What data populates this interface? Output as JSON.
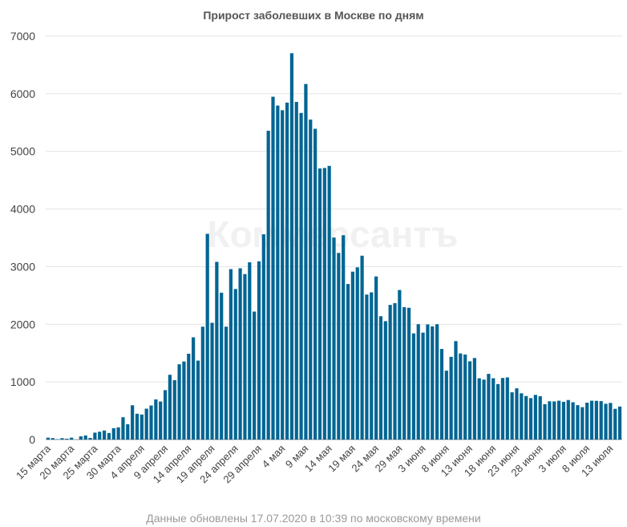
{
  "chart_data": {
    "type": "bar",
    "title": "Прирост заболевших в Москве по дням",
    "xlabel": "",
    "ylabel": "",
    "ylim": [
      0,
      7000
    ],
    "yticks": [
      0,
      1000,
      2000,
      3000,
      4000,
      5000,
      6000,
      7000
    ],
    "grid": true,
    "bar_color": "#006593",
    "start_date": "15 марта",
    "xtick_labels": [
      "15 марта",
      "20 марта",
      "25 марта",
      "30 марта",
      "4 апреля",
      "9 апреля",
      "14 апреля",
      "19 апреля",
      "24 апреля",
      "29 апреля",
      "4 мая",
      "9 мая",
      "14 мая",
      "19 мая",
      "24 мая",
      "29 мая",
      "3 июня",
      "8 июня",
      "13 июня",
      "18 июня",
      "23 июня",
      "28 июня",
      "3 июля",
      "8 июля",
      "13 июля"
    ],
    "values": [
      33,
      25,
      6,
      24,
      15,
      33,
      0,
      56,
      71,
      28,
      120,
      136,
      157,
      114,
      197,
      212,
      387,
      267,
      595,
      448,
      434,
      536,
      591,
      697,
      660,
      857,
      1124,
      1030,
      1306,
      1355,
      1489,
      1774,
      1370,
      1959,
      3570,
      2026,
      3083,
      2548,
      1959,
      2957,
      2612,
      2971,
      2871,
      3075,
      2220,
      3093,
      3561,
      5358,
      5948,
      5795,
      5714,
      5846,
      6703,
      5858,
      5667,
      6169,
      5551,
      5392,
      4703,
      4712,
      4748,
      3505,
      3238,
      3545,
      2699,
      2913,
      2988,
      3190,
      2516,
      2554,
      2830,
      2140,
      2054,
      2336,
      2367,
      2595,
      2297,
      2286,
      1842,
      2001,
      1855,
      1998,
      1964,
      2001,
      1572,
      1195,
      1435,
      1708,
      1494,
      1475,
      1358,
      1415,
      1063,
      1040,
      1140,
      1064,
      963,
      1068,
      1078,
      820,
      889,
      803,
      756,
      719,
      775,
      752,
      614,
      664,
      662,
      674,
      655,
      686,
      647,
      597,
      562,
      640,
      674,
      672,
      667,
      621,
      636,
      533,
      573
    ]
  },
  "watermark": "Коммерсантъ",
  "footer": "Данные обновлены 17.07.2020 в 10:39 по московскому времени"
}
